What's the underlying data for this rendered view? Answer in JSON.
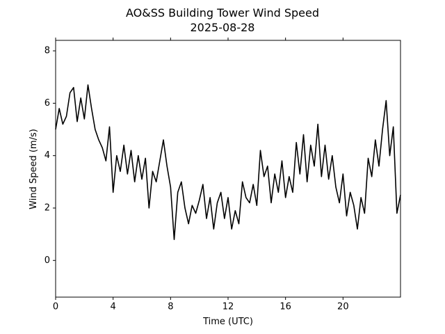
{
  "chart_data": {
    "type": "line",
    "title": "AO&SS Building Tower Wind Speed",
    "subtitle": "2025-08-28",
    "xlabel": "Time (UTC)",
    "ylabel": "Wind Speed (m/s)",
    "xlim": [
      0,
      24
    ],
    "xticks": [
      0,
      4,
      8,
      12,
      16,
      20
    ],
    "ylim": [
      -1.4,
      8.4
    ],
    "yticks": [
      0,
      2,
      4,
      6,
      8
    ],
    "x": [
      0,
      0.25,
      0.5,
      0.75,
      1,
      1.25,
      1.5,
      1.75,
      2,
      2.25,
      2.5,
      2.75,
      3,
      3.25,
      3.5,
      3.75,
      4,
      4.25,
      4.5,
      4.75,
      5,
      5.25,
      5.5,
      5.75,
      6,
      6.25,
      6.5,
      6.75,
      7,
      7.25,
      7.5,
      7.75,
      8,
      8.25,
      8.5,
      8.75,
      9,
      9.25,
      9.5,
      9.75,
      10,
      10.25,
      10.5,
      10.75,
      11,
      11.25,
      11.5,
      11.75,
      12,
      12.25,
      12.5,
      12.75,
      13,
      13.25,
      13.5,
      13.75,
      14,
      14.25,
      14.5,
      14.75,
      15,
      15.25,
      15.5,
      15.75,
      16,
      16.25,
      16.5,
      16.75,
      17,
      17.25,
      17.5,
      17.75,
      18,
      18.25,
      18.5,
      18.75,
      19,
      19.25,
      19.5,
      19.75,
      20,
      20.25,
      20.5,
      20.75,
      21,
      21.25,
      21.5,
      21.75,
      22,
      22.25,
      22.5,
      22.75,
      23,
      23.25,
      23.5,
      23.75,
      24
    ],
    "series": [
      {
        "name": "Wind Speed",
        "color": "#000000",
        "values": [
          5.0,
          5.8,
          5.2,
          5.5,
          6.4,
          6.6,
          5.3,
          6.2,
          5.4,
          6.7,
          5.8,
          5.0,
          4.6,
          4.3,
          3.8,
          5.1,
          2.6,
          4.0,
          3.4,
          4.4,
          3.3,
          4.2,
          3.0,
          4.0,
          3.1,
          3.9,
          2.0,
          3.4,
          3.0,
          3.8,
          4.6,
          3.6,
          2.8,
          0.8,
          2.6,
          3.0,
          2.0,
          1.4,
          2.1,
          1.8,
          2.3,
          2.9,
          1.6,
          2.4,
          1.2,
          2.2,
          2.6,
          1.6,
          2.4,
          1.2,
          1.9,
          1.4,
          3.0,
          2.4,
          2.2,
          2.9,
          2.1,
          4.2,
          3.2,
          3.6,
          2.2,
          3.3,
          2.6,
          3.8,
          2.4,
          3.2,
          2.6,
          4.5,
          3.3,
          4.8,
          3.0,
          4.4,
          3.6,
          5.2,
          3.2,
          4.4,
          3.1,
          4.0,
          2.8,
          2.2,
          3.3,
          1.7,
          2.6,
          2.1,
          1.2,
          2.4,
          1.8,
          3.9,
          3.2,
          4.6,
          3.6,
          5.0,
          6.1,
          4.0,
          5.1,
          1.8,
          2.5
        ]
      }
    ]
  }
}
